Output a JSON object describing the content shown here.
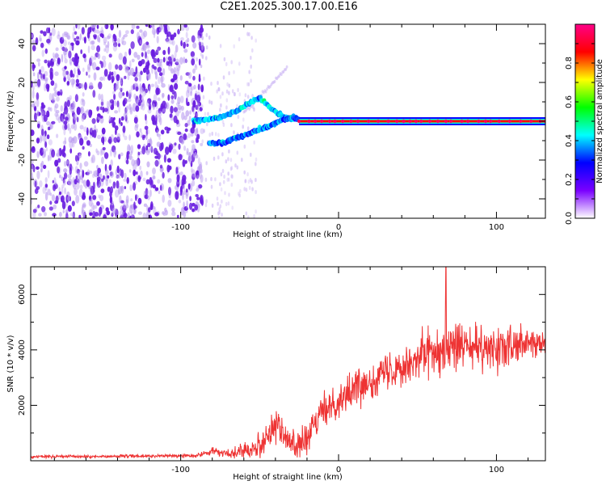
{
  "title": "C2E1.2025.300.17.00.E16",
  "colors": {
    "snr_line": "#ee3333",
    "spectrogram_dots": "#6a1ee0",
    "frame": "#000000"
  },
  "chart_data": [
    {
      "type": "heatmap",
      "title": "C2E1.2025.300.17.00.E16",
      "xlabel": "Height of straight line (km)",
      "ylabel": "Frequency (Hz)",
      "xlim": [
        -195,
        131
      ],
      "ylim": [
        -50,
        50
      ],
      "xticks": [
        -100,
        0,
        100
      ],
      "yticks": [
        -40,
        -20,
        0,
        20,
        40
      ],
      "xtick_labels": [
        "-100",
        "0",
        "100"
      ],
      "ytick_labels": [
        "-40",
        "-20",
        "0",
        "20",
        "40"
      ],
      "colorbar": {
        "label": "Normalized spectral amplitude",
        "range": [
          0,
          1
        ],
        "ticks": [
          0.0,
          0.2,
          0.4,
          0.6,
          0.8
        ],
        "tick_labels": [
          "0.0",
          "0.2",
          "0.4",
          "0.6",
          "0.8"
        ],
        "colormap": [
          "#ffffff",
          "#7a00ff",
          "#0000ff",
          "#00ffff",
          "#00ff00",
          "#ffff00",
          "#ff0000",
          "#ff0088"
        ]
      },
      "features": [
        {
          "name": "broadband noise cloud",
          "x_range": [
            -195,
            -92
          ],
          "freq_range": [
            -50,
            50
          ],
          "amplitude": 0.1
        },
        {
          "name": "upper branch",
          "x": [
            -92,
            -85,
            -75,
            -65,
            -57,
            -50,
            -42,
            -35,
            -28
          ],
          "freq": [
            0,
            1,
            2,
            5,
            9,
            12,
            6,
            2,
            1
          ],
          "amplitude": 0.4
        },
        {
          "name": "lower branch",
          "x": [
            -82,
            -74,
            -66,
            -58,
            -50,
            -44,
            -38,
            -30,
            -25
          ],
          "freq": [
            -11,
            -11,
            -9,
            -7,
            -4,
            -3,
            0,
            2,
            1
          ],
          "amplitude": 0.35
        },
        {
          "name": "carrier line",
          "x_range": [
            -25,
            131
          ],
          "freq": 0,
          "amplitude": 0.85
        }
      ]
    },
    {
      "type": "line",
      "xlabel": "Height of straight line (km)",
      "ylabel": "SNR (10 * v/v)",
      "xlim": [
        -195,
        131
      ],
      "ylim": [
        0,
        7000
      ],
      "xticks": [
        -100,
        0,
        100
      ],
      "yticks": [
        2000,
        4000,
        6000
      ],
      "xtick_labels": [
        "-100",
        "0",
        "100"
      ],
      "ytick_labels": [
        "2000",
        "4000",
        "6000"
      ],
      "series": [
        {
          "name": "SNR",
          "envelope": {
            "x": [
              -195,
              -160,
              -120,
              -90,
              -80,
              -70,
              -60,
              -50,
              -45,
              -40,
              -35,
              -30,
              -25,
              -20,
              -15,
              -10,
              -5,
              0,
              10,
              20,
              30,
              40,
              50,
              60,
              70,
              80,
              90,
              100,
              110,
              120,
              131
            ],
            "center": [
              150,
              150,
              170,
              180,
              350,
              250,
              400,
              550,
              900,
              1400,
              900,
              650,
              600,
              700,
              1300,
              1800,
              2000,
              2200,
              2600,
              2900,
              3200,
              3500,
              3700,
              4000,
              4200,
              4100,
              4000,
              4000,
              4100,
              4200,
              4250
            ],
            "spread": [
              80,
              80,
              80,
              100,
              200,
              200,
              400,
              700,
              900,
              1100,
              800,
              700,
              700,
              900,
              900,
              850,
              900,
              900,
              900,
              1000,
              1100,
              1100,
              1300,
              1500,
              1400,
              1200,
              1200,
              1100,
              1100,
              900,
              800
            ]
          },
          "peak": {
            "x": 68,
            "y": 7000
          }
        }
      ]
    }
  ]
}
